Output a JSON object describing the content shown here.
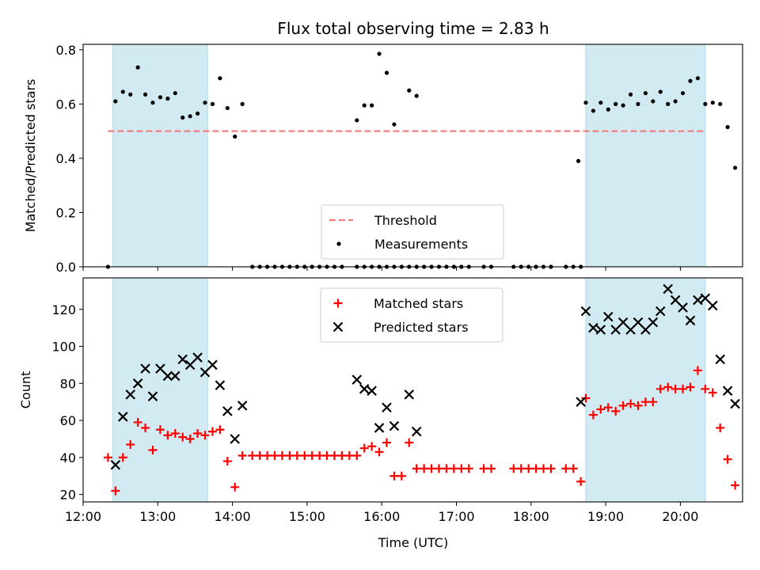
{
  "chart_data": [
    {
      "type": "scatter",
      "title": "Flux total observing time = 2.83 h",
      "ylabel": "Matched/Predicted stars",
      "xlabel": "",
      "xlim": [
        "12:00",
        "20:50"
      ],
      "ylim": [
        0,
        0.82
      ],
      "x_ticks": [
        "12:00",
        "13:00",
        "14:00",
        "15:00",
        "16:00",
        "17:00",
        "18:00",
        "19:00",
        "20:00"
      ],
      "y_ticks": [
        "0.0",
        "0.2",
        "0.4",
        "0.6",
        "0.8"
      ],
      "highlight_spans": [
        [
          "12:24",
          "13:40"
        ],
        [
          "18:44",
          "20:20"
        ]
      ],
      "highlight_color": "#add8e6",
      "threshold": {
        "name": "Threshold",
        "value": 0.5,
        "xrange": [
          "12:20",
          "20:20"
        ],
        "color": "#f08080",
        "style": "dashed"
      },
      "series": [
        {
          "name": "Measurements",
          "marker": "dot",
          "color": "#000000",
          "points": [
            [
              "12:20",
              0.0
            ],
            [
              "12:26",
              0.61
            ],
            [
              "12:32",
              0.645
            ],
            [
              "12:38",
              0.635
            ],
            [
              "12:44",
              0.735
            ],
            [
              "12:50",
              0.635
            ],
            [
              "12:56",
              0.605
            ],
            [
              "13:02",
              0.625
            ],
            [
              "13:08",
              0.62
            ],
            [
              "13:14",
              0.64
            ],
            [
              "13:20",
              0.55
            ],
            [
              "13:26",
              0.555
            ],
            [
              "13:32",
              0.565
            ],
            [
              "13:38",
              0.605
            ],
            [
              "13:44",
              0.6
            ],
            [
              "13:50",
              0.695
            ],
            [
              "13:56",
              0.585
            ],
            [
              "14:02",
              0.48
            ],
            [
              "14:08",
              0.6
            ],
            [
              "14:16",
              0.0
            ],
            [
              "14:22",
              0.0
            ],
            [
              "14:28",
              0.0
            ],
            [
              "14:34",
              0.0
            ],
            [
              "14:40",
              0.0
            ],
            [
              "14:46",
              0.0
            ],
            [
              "14:52",
              0.0
            ],
            [
              "14:58",
              0.0
            ],
            [
              "15:04",
              0.0
            ],
            [
              "15:10",
              0.0
            ],
            [
              "15:16",
              0.0
            ],
            [
              "15:22",
              0.0
            ],
            [
              "15:28",
              0.0
            ],
            [
              "15:40",
              0.0
            ],
            [
              "15:46",
              0.0
            ],
            [
              "15:52",
              0.0
            ],
            [
              "15:58",
              0.0
            ],
            [
              "16:04",
              0.0
            ],
            [
              "16:10",
              0.0
            ],
            [
              "16:16",
              0.0
            ],
            [
              "16:22",
              0.0
            ],
            [
              "16:28",
              0.0
            ],
            [
              "15:40",
              0.54
            ],
            [
              "15:46",
              0.595
            ],
            [
              "15:52",
              0.595
            ],
            [
              "15:58",
              0.785
            ],
            [
              "16:04",
              0.715
            ],
            [
              "16:10",
              0.525
            ],
            [
              "16:22",
              0.65
            ],
            [
              "16:28",
              0.63
            ],
            [
              "16:34",
              0.0
            ],
            [
              "16:40",
              0.0
            ],
            [
              "16:46",
              0.0
            ],
            [
              "16:52",
              0.0
            ],
            [
              "16:58",
              0.0
            ],
            [
              "17:04",
              0.0
            ],
            [
              "17:10",
              0.0
            ],
            [
              "17:22",
              0.0
            ],
            [
              "17:28",
              0.0
            ],
            [
              "17:46",
              0.0
            ],
            [
              "17:52",
              0.0
            ],
            [
              "17:58",
              0.0
            ],
            [
              "18:04",
              0.0
            ],
            [
              "18:10",
              0.0
            ],
            [
              "18:16",
              0.0
            ],
            [
              "18:28",
              0.0
            ],
            [
              "18:34",
              0.0
            ],
            [
              "18:40",
              0.0
            ],
            [
              "18:38",
              0.39
            ],
            [
              "18:44",
              0.605
            ],
            [
              "18:50",
              0.575
            ],
            [
              "18:56",
              0.605
            ],
            [
              "19:02",
              0.58
            ],
            [
              "19:08",
              0.6
            ],
            [
              "19:14",
              0.595
            ],
            [
              "19:20",
              0.635
            ],
            [
              "19:26",
              0.6
            ],
            [
              "19:32",
              0.64
            ],
            [
              "19:38",
              0.61
            ],
            [
              "19:44",
              0.645
            ],
            [
              "19:50",
              0.6
            ],
            [
              "19:56",
              0.61
            ],
            [
              "20:02",
              0.64
            ],
            [
              "20:08",
              0.685
            ],
            [
              "20:14",
              0.695
            ],
            [
              "20:20",
              0.6
            ],
            [
              "20:26",
              0.605
            ],
            [
              "20:32",
              0.6
            ],
            [
              "20:38",
              0.515
            ],
            [
              "20:44",
              0.365
            ]
          ]
        }
      ],
      "legend": {
        "placement": "lower-center",
        "entries": [
          "Threshold",
          "Measurements"
        ]
      }
    },
    {
      "type": "scatter",
      "title": "",
      "ylabel": "Count",
      "xlabel": "Time (UTC)",
      "xlim": [
        "12:00",
        "20:50"
      ],
      "ylim": [
        16,
        137
      ],
      "x_ticks": [
        "12:00",
        "13:00",
        "14:00",
        "15:00",
        "16:00",
        "17:00",
        "18:00",
        "19:00",
        "20:00"
      ],
      "y_ticks": [
        "20",
        "40",
        "60",
        "80",
        "100",
        "120"
      ],
      "highlight_spans": [
        [
          "12:24",
          "13:40"
        ],
        [
          "18:44",
          "20:20"
        ]
      ],
      "highlight_color": "#add8e6",
      "series": [
        {
          "name": "Matched stars",
          "marker": "plus",
          "color": "#ff0000",
          "points": [
            [
              "12:20",
              40
            ],
            [
              "12:26",
              22
            ],
            [
              "12:32",
              40
            ],
            [
              "12:38",
              47
            ],
            [
              "12:44",
              59
            ],
            [
              "12:50",
              56
            ],
            [
              "12:56",
              44
            ],
            [
              "13:02",
              55
            ],
            [
              "13:08",
              52
            ],
            [
              "13:14",
              53
            ],
            [
              "13:20",
              51
            ],
            [
              "13:26",
              50
            ],
            [
              "13:32",
              53
            ],
            [
              "13:38",
              52
            ],
            [
              "13:44",
              54
            ],
            [
              "13:50",
              55
            ],
            [
              "13:56",
              38
            ],
            [
              "14:02",
              24
            ],
            [
              "14:08",
              41
            ],
            [
              "14:16",
              41
            ],
            [
              "14:22",
              41
            ],
            [
              "14:28",
              41
            ],
            [
              "14:34",
              41
            ],
            [
              "14:40",
              41
            ],
            [
              "14:46",
              41
            ],
            [
              "14:52",
              41
            ],
            [
              "14:58",
              41
            ],
            [
              "15:04",
              41
            ],
            [
              "15:10",
              41
            ],
            [
              "15:16",
              41
            ],
            [
              "15:22",
              41
            ],
            [
              "15:28",
              41
            ],
            [
              "15:34",
              41
            ],
            [
              "15:40",
              41
            ],
            [
              "15:46",
              45
            ],
            [
              "15:52",
              46
            ],
            [
              "15:58",
              43
            ],
            [
              "16:04",
              48
            ],
            [
              "16:10",
              30
            ],
            [
              "16:16",
              30
            ],
            [
              "16:22",
              48
            ],
            [
              "16:28",
              34
            ],
            [
              "16:34",
              34
            ],
            [
              "16:40",
              34
            ],
            [
              "16:46",
              34
            ],
            [
              "16:52",
              34
            ],
            [
              "16:58",
              34
            ],
            [
              "17:04",
              34
            ],
            [
              "17:10",
              34
            ],
            [
              "17:22",
              34
            ],
            [
              "17:28",
              34
            ],
            [
              "17:46",
              34
            ],
            [
              "17:52",
              34
            ],
            [
              "17:58",
              34
            ],
            [
              "18:04",
              34
            ],
            [
              "18:10",
              34
            ],
            [
              "18:16",
              34
            ],
            [
              "18:28",
              34
            ],
            [
              "18:34",
              34
            ],
            [
              "18:40",
              27
            ],
            [
              "18:44",
              72
            ],
            [
              "18:50",
              63
            ],
            [
              "18:56",
              66
            ],
            [
              "19:02",
              67
            ],
            [
              "19:08",
              65
            ],
            [
              "19:14",
              68
            ],
            [
              "19:20",
              69
            ],
            [
              "19:26",
              68
            ],
            [
              "19:32",
              70
            ],
            [
              "19:38",
              70
            ],
            [
              "19:44",
              77
            ],
            [
              "19:50",
              78
            ],
            [
              "19:56",
              77
            ],
            [
              "20:02",
              77
            ],
            [
              "20:08",
              78
            ],
            [
              "20:14",
              87
            ],
            [
              "20:20",
              77
            ],
            [
              "20:26",
              75
            ],
            [
              "20:32",
              56
            ],
            [
              "20:38",
              39
            ],
            [
              "20:44",
              25
            ]
          ]
        },
        {
          "name": "Predicted stars",
          "marker": "x",
          "color": "#000000",
          "points": [
            [
              "12:26",
              36
            ],
            [
              "12:32",
              62
            ],
            [
              "12:38",
              74
            ],
            [
              "12:44",
              80
            ],
            [
              "12:50",
              88
            ],
            [
              "12:56",
              73
            ],
            [
              "13:02",
              88
            ],
            [
              "13:08",
              84
            ],
            [
              "13:14",
              84
            ],
            [
              "13:20",
              93
            ],
            [
              "13:26",
              90
            ],
            [
              "13:32",
              94
            ],
            [
              "13:38",
              86
            ],
            [
              "13:44",
              90
            ],
            [
              "13:50",
              79
            ],
            [
              "13:56",
              65
            ],
            [
              "14:02",
              50
            ],
            [
              "14:08",
              68
            ],
            [
              "15:40",
              82
            ],
            [
              "15:46",
              77
            ],
            [
              "15:52",
              76
            ],
            [
              "15:58",
              56
            ],
            [
              "16:04",
              67
            ],
            [
              "16:10",
              57
            ],
            [
              "16:22",
              74
            ],
            [
              "16:28",
              54
            ],
            [
              "18:40",
              70
            ],
            [
              "18:44",
              119
            ],
            [
              "18:50",
              110
            ],
            [
              "18:56",
              109
            ],
            [
              "19:02",
              116
            ],
            [
              "19:08",
              109
            ],
            [
              "19:14",
              113
            ],
            [
              "19:20",
              109
            ],
            [
              "19:26",
              113
            ],
            [
              "19:32",
              109
            ],
            [
              "19:38",
              113
            ],
            [
              "19:44",
              119
            ],
            [
              "19:50",
              131
            ],
            [
              "19:56",
              125
            ],
            [
              "20:02",
              121
            ],
            [
              "20:08",
              114
            ],
            [
              "20:14",
              125
            ],
            [
              "20:20",
              126
            ],
            [
              "20:26",
              122
            ],
            [
              "20:32",
              93
            ],
            [
              "20:38",
              76
            ],
            [
              "20:44",
              69
            ]
          ]
        }
      ],
      "legend": {
        "placement": "upper-center",
        "entries": [
          "Matched stars",
          "Predicted stars"
        ]
      }
    }
  ]
}
